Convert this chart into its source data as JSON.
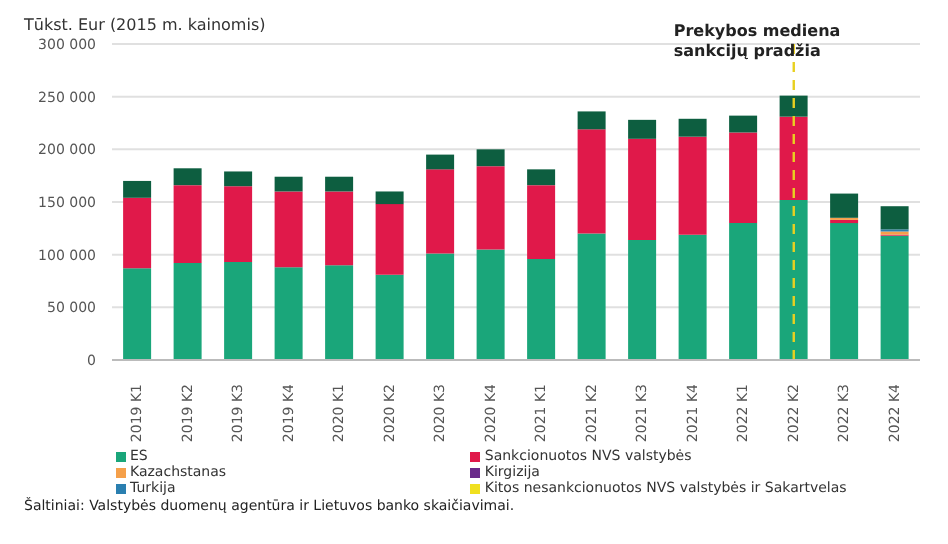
{
  "chart_data": {
    "type": "bar",
    "stacked": true,
    "ylabel": "Tūkst. Eur (2015 m. kainomis)",
    "categories": [
      "2019 K1",
      "2019 K2",
      "2019 K3",
      "2019 K4",
      "2020 K1",
      "2020 K2",
      "2020 K3",
      "2020 K4",
      "2021 K1",
      "2021 K2",
      "2021 K3",
      "2021 K4",
      "2022 K1",
      "2022 K2",
      "2022 K3",
      "2022 K4"
    ],
    "series": [
      {
        "name": "ES",
        "color": "#1aa67a",
        "values": [
          87000,
          92000,
          93000,
          88000,
          90000,
          81000,
          101000,
          105000,
          96000,
          120000,
          114000,
          119000,
          130000,
          152000,
          130000,
          118000
        ]
      },
      {
        "name": "Sankcionuotos NVS valstybės",
        "color": "#e0194a",
        "values": [
          67000,
          74000,
          72000,
          72000,
          70000,
          67000,
          80000,
          79000,
          70000,
          99000,
          96000,
          93000,
          86000,
          79000,
          3000,
          1000
        ]
      },
      {
        "name": "Kazachstanas",
        "color": "#f5a04a",
        "values": [
          0,
          0,
          0,
          0,
          0,
          0,
          0,
          0,
          0,
          0,
          0,
          0,
          0,
          0,
          2000,
          3000
        ]
      },
      {
        "name": "Kirgizija",
        "color": "#6a2a8a",
        "values": [
          0,
          0,
          0,
          0,
          0,
          0,
          0,
          0,
          0,
          0,
          0,
          0,
          0,
          0,
          0,
          0
        ]
      },
      {
        "name": "Turkija",
        "color": "#2a7fb0",
        "values": [
          0,
          0,
          0,
          0,
          0,
          0,
          0,
          0,
          0,
          0,
          0,
          0,
          0,
          0,
          0,
          2000
        ]
      },
      {
        "name": "Kitos nesankcionuotos NVS valstybės ir Sakartvelas",
        "color": "#f0e020",
        "values": [
          0,
          0,
          0,
          0,
          0,
          0,
          0,
          0,
          0,
          0,
          0,
          0,
          0,
          0,
          0,
          0
        ]
      },
      {
        "color": "#0d5e40",
        "values": [
          16000,
          16000,
          14000,
          14000,
          14000,
          12000,
          14000,
          16000,
          15000,
          17000,
          18000,
          17000,
          16000,
          20000,
          23000,
          22000
        ]
      }
    ],
    "ylim": [
      0,
      300000
    ],
    "yticks": [
      {
        "value": 0,
        "label": "0"
      },
      {
        "value": 50000,
        "label": "50 000"
      },
      {
        "value": 100000,
        "label": "100 000"
      },
      {
        "value": 150000,
        "label": "150 000"
      },
      {
        "value": 200000,
        "label": "200 000"
      },
      {
        "value": 250000,
        "label": "250 000"
      },
      {
        "value": 300000,
        "label": "300 000"
      }
    ],
    "grid": "y",
    "legend": "bottom",
    "ref_lines": [
      {
        "axis": "x",
        "value": "2022 K2",
        "label": "Prekybos mediena sankcijų pradžia",
        "color": "#e8d020",
        "line_style": "dashed"
      }
    ],
    "annotations": [
      "Šaltiniai: Valstybės duomenų agentūra ir Lietuvos banko skaičiavimai."
    ]
  }
}
